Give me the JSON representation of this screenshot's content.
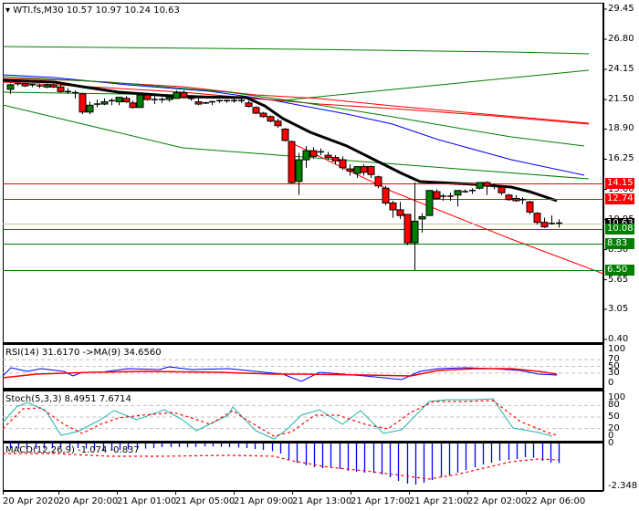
{
  "header": {
    "symbol": "WTI.fs,M30",
    "ohlc": "10.57 10.97 10.24 10.63",
    "title_text": "WTI.fs,M30  10.57 10.97 10.24 10.63"
  },
  "colors": {
    "bull": "#007f00",
    "bear": "#ff0000",
    "ma_black": "#000000",
    "ma_blue": "#0000ff",
    "ma_red": "#ff0000",
    "ma_green": "#007f00",
    "rsi": "#0000ff",
    "rsi_ma": "#ff0000",
    "stoch_main": "#20b2aa",
    "stoch_signal": "#ff0000",
    "macd_hist": "#0000ff",
    "macd_signal": "#ff0000",
    "current_price_bg": "#000000",
    "grid_dash": "#c0c0c0"
  },
  "price_axis": {
    "ticks": [
      "29.45",
      "26.80",
      "24.15",
      "21.50",
      "18.90",
      "16.25",
      "13.60",
      "10.95",
      "8.30",
      "5.65",
      "3.05",
      "0.40"
    ],
    "max": 29.45,
    "min": 0.4
  },
  "price_tags": [
    {
      "value": "14.15",
      "color": "#ff0000"
    },
    {
      "value": "12.74",
      "color": "#ff0000"
    },
    {
      "value": "10.63",
      "color": "#000000"
    },
    {
      "value": "10.08",
      "color": "#007f00"
    },
    {
      "value": "8.83",
      "color": "#007f00"
    },
    {
      "value": "6.50",
      "color": "#007f00"
    }
  ],
  "time_axis": {
    "labels": [
      "20 Apr 2020",
      "20 Apr 20:00",
      "21 Apr 01:00",
      "21 Apr 05:00",
      "21 Apr 09:00",
      "21 Apr 13:00",
      "21 Apr 17:00",
      "21 Apr 21:00",
      "22 Apr 02:00",
      "22 Apr 06:00"
    ]
  },
  "rsi": {
    "label": "RSI(14) 31.6170  ->MA(9) 34.6560",
    "levels": [
      "100",
      "70",
      "50",
      "30",
      "0"
    ]
  },
  "stoch": {
    "label": "Stoch(5,3,3) 8.4951 7.6714",
    "levels": [
      "100",
      "80",
      "50",
      "20",
      "0"
    ]
  },
  "macd": {
    "label": "MACD(12,26,9) -1.074 -0.837",
    "levels": [
      "0",
      "-2.348"
    ]
  },
  "chart_data": [
    {
      "type": "candlestick",
      "title": "WTI.fs,M30  10.57 10.97 10.24 10.63",
      "ylim": [
        0.4,
        29.45
      ],
      "x_labels": [
        "20 Apr 2020",
        "20 Apr 20:00",
        "21 Apr 01:00",
        "21 Apr 05:00",
        "21 Apr 09:00",
        "21 Apr 13:00",
        "21 Apr 17:00",
        "21 Apr 21:00",
        "22 Apr 02:00",
        "22 Apr 06:00"
      ],
      "candles": [
        [
          22.4,
          22.9,
          22.0,
          22.8
        ],
        [
          22.8,
          23.1,
          22.7,
          22.9
        ],
        [
          22.9,
          23.0,
          22.6,
          22.7
        ],
        [
          22.8,
          22.9,
          22.6,
          22.8
        ],
        [
          22.7,
          22.9,
          22.5,
          22.6
        ],
        [
          22.6,
          22.9,
          22.5,
          22.8
        ],
        [
          22.8,
          22.9,
          22.5,
          22.6
        ],
        [
          22.6,
          22.8,
          22.1,
          22.2
        ],
        [
          22.2,
          22.5,
          22.0,
          22.1
        ],
        [
          22.1,
          22.3,
          21.6,
          22.0
        ],
        [
          22.0,
          22.1,
          20.2,
          20.4
        ],
        [
          20.4,
          21.3,
          20.2,
          21.0
        ],
        [
          21.0,
          21.5,
          20.8,
          21.1
        ],
        [
          21.1,
          21.6,
          21.0,
          21.3
        ],
        [
          21.3,
          21.6,
          21.0,
          21.4
        ],
        [
          21.3,
          21.7,
          21.0,
          21.7
        ],
        [
          21.6,
          21.8,
          21.2,
          21.3
        ],
        [
          21.2,
          21.4,
          20.7,
          20.8
        ],
        [
          20.8,
          22.1,
          20.8,
          21.9
        ],
        [
          21.9,
          22.1,
          21.4,
          21.5
        ],
        [
          21.5,
          21.8,
          21.1,
          21.4
        ],
        [
          21.4,
          21.7,
          21.2,
          21.5
        ],
        [
          21.5,
          21.9,
          21.3,
          21.7
        ],
        [
          21.6,
          22.3,
          21.6,
          22.1
        ],
        [
          22.1,
          22.3,
          21.6,
          21.7
        ],
        [
          21.6,
          21.8,
          21.4,
          21.5
        ],
        [
          21.3,
          21.6,
          21.0,
          21.1
        ],
        [
          21.1,
          21.3,
          21.1,
          21.2
        ],
        [
          21.2,
          21.4,
          21.0,
          21.3
        ],
        [
          21.3,
          21.5,
          21.2,
          21.4
        ],
        [
          21.4,
          21.5,
          21.2,
          21.4
        ],
        [
          21.4,
          21.6,
          21.2,
          21.4
        ],
        [
          21.4,
          21.6,
          21.2,
          21.4
        ],
        [
          21.2,
          21.4,
          20.8,
          20.9
        ],
        [
          20.8,
          20.9,
          20.2,
          20.3
        ],
        [
          20.3,
          20.4,
          19.9,
          20.0
        ],
        [
          20.0,
          20.1,
          19.5,
          19.6
        ],
        [
          19.6,
          19.8,
          19.0,
          19.2
        ],
        [
          18.9,
          19.0,
          17.8,
          17.9
        ],
        [
          17.8,
          17.9,
          14.1,
          14.2
        ],
        [
          14.3,
          16.8,
          13.1,
          16.2
        ],
        [
          16.2,
          17.4,
          15.5,
          17.0
        ],
        [
          17.0,
          17.3,
          16.3,
          16.5
        ],
        [
          16.9,
          17.2,
          16.6,
          16.8
        ],
        [
          16.6,
          16.9,
          16.2,
          16.4
        ],
        [
          16.4,
          16.6,
          15.8,
          16.1
        ],
        [
          16.2,
          16.5,
          15.3,
          15.5
        ],
        [
          15.4,
          15.8,
          14.8,
          15.2
        ],
        [
          15.0,
          15.6,
          14.6,
          15.6
        ],
        [
          15.6,
          15.8,
          14.8,
          15.1
        ],
        [
          15.6,
          15.7,
          14.6,
          14.9
        ],
        [
          14.7,
          14.8,
          13.7,
          13.9
        ],
        [
          13.7,
          13.9,
          12.2,
          12.4
        ],
        [
          12.4,
          12.6,
          11.1,
          11.8
        ],
        [
          11.8,
          12.5,
          11.0,
          11.3
        ],
        [
          11.4,
          11.4,
          8.7,
          8.9
        ],
        [
          8.9,
          14.2,
          6.5,
          10.8
        ],
        [
          11.0,
          11.5,
          9.8,
          11.2
        ],
        [
          11.3,
          13.5,
          11.3,
          13.5
        ],
        [
          13.4,
          13.6,
          12.8,
          12.8
        ],
        [
          12.9,
          13.2,
          12.6,
          13.0
        ],
        [
          13.0,
          13.3,
          12.6,
          13.0
        ],
        [
          13.1,
          13.5,
          12.1,
          13.5
        ],
        [
          13.4,
          13.6,
          13.3,
          13.4
        ],
        [
          13.5,
          13.7,
          13.2,
          13.5
        ],
        [
          13.7,
          14.2,
          13.6,
          14.2
        ],
        [
          14.2,
          14.3,
          13.1,
          13.9
        ],
        [
          13.9,
          14.1,
          13.6,
          13.8
        ],
        [
          13.8,
          13.9,
          13.1,
          13.3
        ],
        [
          13.1,
          13.2,
          12.6,
          12.7
        ],
        [
          12.8,
          13.1,
          12.5,
          12.6
        ],
        [
          12.7,
          12.9,
          12.3,
          12.6
        ],
        [
          12.5,
          12.6,
          11.4,
          11.6
        ],
        [
          11.5,
          11.6,
          10.5,
          10.7
        ],
        [
          10.7,
          11.1,
          10.2,
          10.3
        ],
        [
          10.5,
          11.3,
          10.5,
          10.6
        ],
        [
          10.57,
          10.97,
          10.24,
          10.63
        ]
      ],
      "horizontal_levels": [
        14.15,
        12.74,
        10.63,
        10.08,
        8.83,
        6.5
      ]
    },
    {
      "type": "line",
      "title": "RSI(14) 31.6170 ->MA(9) 34.6560",
      "ylim": [
        0,
        100
      ],
      "levels": [
        70,
        50,
        30
      ],
      "series": [
        {
          "name": "RSI(14)",
          "last": 31.617
        },
        {
          "name": "MA(9)",
          "last": 34.656
        }
      ]
    },
    {
      "type": "line",
      "title": "Stoch(5,3,3) 8.4951 7.6714",
      "ylim": [
        0,
        100
      ],
      "levels": [
        80,
        50,
        20
      ],
      "series": [
        {
          "name": "Main",
          "last": 8.4951
        },
        {
          "name": "Signal",
          "last": 7.6714
        }
      ]
    },
    {
      "type": "bar",
      "title": "MACD(12,26,9) -1.074 -0.837",
      "ylim": [
        -2.348,
        0
      ],
      "series": [
        {
          "name": "MACD",
          "last": -1.074
        },
        {
          "name": "Signal",
          "last": -0.837
        }
      ]
    }
  ]
}
